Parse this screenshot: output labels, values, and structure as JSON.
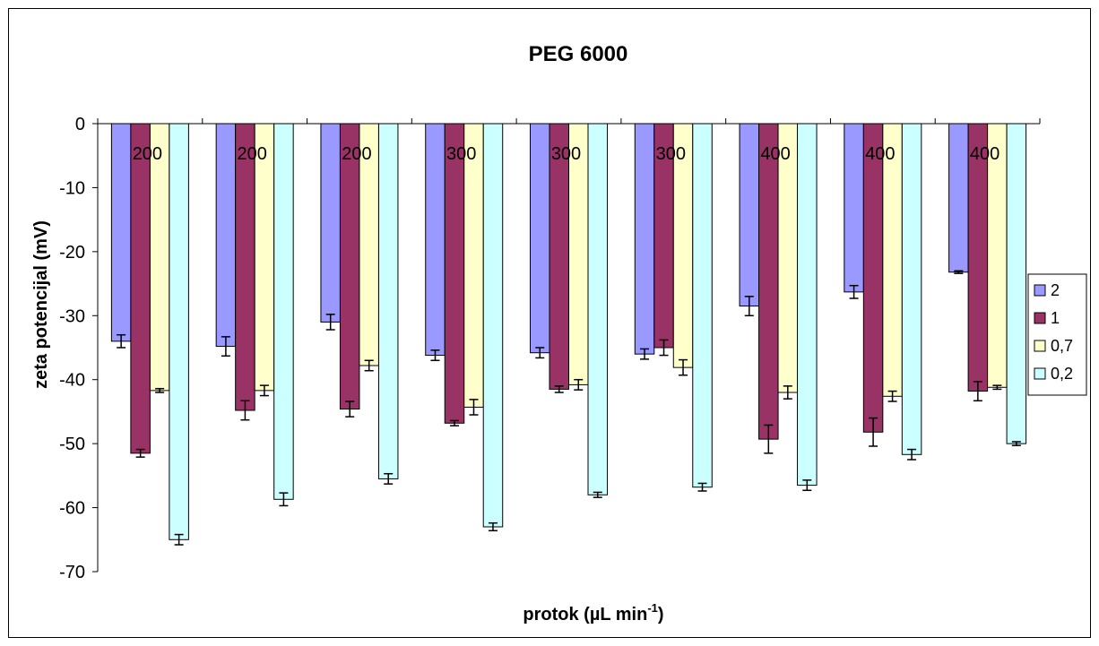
{
  "chart_data": {
    "type": "bar",
    "title": "PEG 6000",
    "xlabel": "protok (µL min",
    "xlabel_sup": "-1",
    "xlabel_end": ")",
    "ylabel": "zeta potencijal (mV)",
    "ylim": [
      -70,
      0
    ],
    "yticks": [
      0,
      -10,
      -20,
      -30,
      -40,
      -50,
      -60,
      -70
    ],
    "grid": false,
    "legend_position": "right",
    "categories": [
      "200",
      "200",
      "200",
      "300",
      "300",
      "300",
      "400",
      "400",
      "400"
    ],
    "series": [
      {
        "name": "2",
        "color": "#9999ff",
        "values": [
          -34,
          -34.8,
          -31,
          -36.2,
          -35.8,
          -36,
          -28.5,
          -26.3,
          -23.2
        ],
        "errors": [
          1.0,
          1.5,
          1.2,
          0.8,
          0.8,
          0.8,
          1.5,
          1.0,
          0.2
        ]
      },
      {
        "name": "1",
        "color": "#993366",
        "values": [
          -51.5,
          -44.8,
          -44.6,
          -46.8,
          -41.5,
          -35,
          -49.3,
          -48.2,
          -41.8
        ],
        "errors": [
          0.6,
          1.5,
          1.2,
          0.4,
          0.5,
          1.2,
          2.2,
          2.2,
          1.5
        ]
      },
      {
        "name": "0,7",
        "color": "#ffffcc",
        "values": [
          -41.7,
          -41.7,
          -37.8,
          -44.3,
          -40.8,
          -38.1,
          -42,
          -42.6,
          -41.2
        ],
        "errors": [
          0.3,
          0.8,
          0.8,
          1.2,
          0.8,
          1.2,
          1.0,
          0.8,
          0.3
        ]
      },
      {
        "name": "0,2",
        "color": "#ccffff",
        "values": [
          -65,
          -58.7,
          -55.5,
          -63,
          -58,
          -56.8,
          -56.5,
          -51.7,
          -50
        ],
        "errors": [
          0.8,
          1.0,
          0.8,
          0.6,
          0.4,
          0.6,
          0.8,
          0.8,
          0.3
        ]
      }
    ]
  }
}
